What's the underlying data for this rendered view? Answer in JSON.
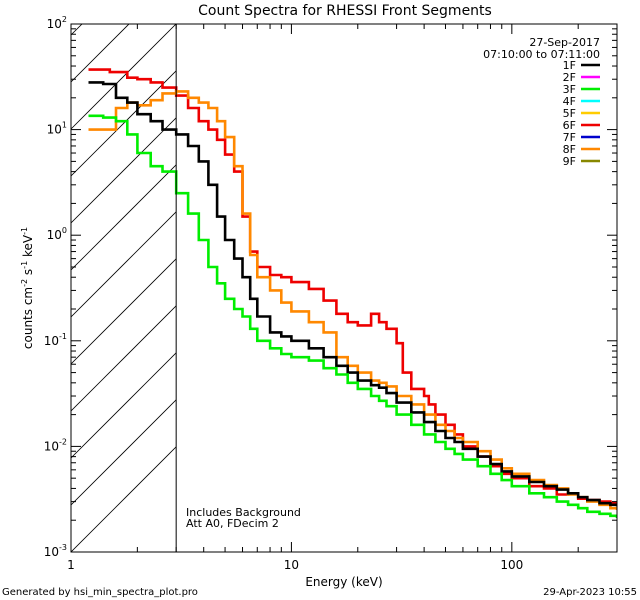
{
  "chart_data": {
    "type": "line",
    "title": "Count Spectra for RHESSI Front Segments",
    "xlabel": "Energy (keV)",
    "ylabel_parts": [
      "counts cm",
      "-2",
      " s",
      "-1",
      " keV",
      "-1"
    ],
    "xscale": "log",
    "yscale": "log",
    "xlim": [
      1,
      300
    ],
    "ylim": [
      0.001,
      100
    ],
    "x_tick_labels": [
      {
        "value": 1,
        "label": "1"
      },
      {
        "value": 10,
        "label": "10"
      },
      {
        "value": 100,
        "label": "100"
      }
    ],
    "y_tick_labels": [
      {
        "value": 0.001,
        "base": "10",
        "exp": "-3"
      },
      {
        "value": 0.01,
        "base": "10",
        "exp": "-2"
      },
      {
        "value": 0.1,
        "base": "10",
        "exp": "-1"
      },
      {
        "value": 1,
        "base": "10",
        "exp": "0"
      },
      {
        "value": 10,
        "base": "10",
        "exp": "1"
      },
      {
        "value": 100,
        "base": "10",
        "exp": "2"
      }
    ],
    "date": "27-Sep-2017",
    "time_range": "07:10:00 to 07:11:00",
    "legend": [
      {
        "name": "1F",
        "color": "#000000"
      },
      {
        "name": "2F",
        "color": "#ff00ff"
      },
      {
        "name": "3F",
        "color": "#00ee00"
      },
      {
        "name": "4F",
        "color": "#00ffff"
      },
      {
        "name": "5F",
        "color": "#ffcc00"
      },
      {
        "name": "6F",
        "color": "#ee0000"
      },
      {
        "name": "7F",
        "color": "#0000cc"
      },
      {
        "name": "8F",
        "color": "#ff8800"
      },
      {
        "name": "9F",
        "color": "#888800"
      }
    ],
    "hatched_region": {
      "from": 1,
      "to": 3
    },
    "annotations": [
      "Includes Background",
      "Att A0, FDecim 2"
    ],
    "series": [
      {
        "name": "6F",
        "color": "#ee0000",
        "x": [
          1.2,
          1.5,
          1.8,
          2.0,
          2.3,
          2.6,
          3.0,
          3.4,
          3.8,
          4.2,
          4.6,
          5.0,
          5.5,
          6.0,
          6.5,
          7.0,
          8.0,
          9.0,
          10,
          12,
          14,
          16,
          18,
          20,
          23,
          25,
          27,
          30,
          32,
          35,
          40,
          42,
          45,
          50,
          55,
          60,
          70,
          80,
          90,
          100,
          120,
          140,
          160,
          180,
          200,
          220,
          250,
          280,
          300
        ],
        "y": [
          37,
          35,
          31,
          30,
          28,
          25,
          21,
          16,
          12,
          10,
          8,
          5.8,
          4.0,
          1.5,
          0.7,
          0.5,
          0.42,
          0.4,
          0.36,
          0.31,
          0.24,
          0.18,
          0.15,
          0.14,
          0.18,
          0.15,
          0.13,
          0.095,
          0.05,
          0.035,
          0.03,
          0.025,
          0.02,
          0.016,
          0.013,
          0.01,
          0.008,
          0.0065,
          0.0055,
          0.005,
          0.0042,
          0.004,
          0.0035,
          0.0036,
          0.0032,
          0.0031,
          0.003,
          0.0029,
          0.0028
        ]
      },
      {
        "name": "8F",
        "color": "#ff8800",
        "x": [
          1.2,
          1.4,
          1.6,
          1.8,
          2.0,
          2.3,
          2.6,
          3.0,
          3.4,
          3.8,
          4.2,
          4.6,
          5.0,
          5.5,
          6.0,
          6.5,
          7.0,
          8.0,
          9.0,
          10,
          12,
          14,
          16,
          18,
          20,
          23,
          25,
          27,
          30,
          35,
          40,
          45,
          50,
          55,
          60,
          70,
          80,
          90,
          100,
          120,
          140,
          160,
          180,
          200,
          220,
          250,
          280,
          300
        ],
        "y": [
          10,
          10,
          16,
          18,
          17,
          19,
          22,
          23,
          20,
          18,
          16,
          12,
          8.5,
          4.5,
          1.6,
          0.65,
          0.4,
          0.3,
          0.23,
          0.19,
          0.15,
          0.12,
          0.07,
          0.058,
          0.05,
          0.042,
          0.04,
          0.037,
          0.03,
          0.025,
          0.02,
          0.016,
          0.014,
          0.012,
          0.011,
          0.009,
          0.0075,
          0.0062,
          0.0055,
          0.0048,
          0.0043,
          0.004,
          0.0035,
          0.0033,
          0.003,
          0.0028,
          0.0026,
          0.0025
        ]
      },
      {
        "name": "1F",
        "color": "#000000",
        "x": [
          1.2,
          1.4,
          1.6,
          1.8,
          2.0,
          2.3,
          2.6,
          3.0,
          3.4,
          3.8,
          4.2,
          4.6,
          5.0,
          5.5,
          6.0,
          6.5,
          7.0,
          8.0,
          9.0,
          10,
          12,
          14,
          16,
          18,
          20,
          23,
          25,
          27,
          30,
          35,
          40,
          45,
          50,
          55,
          60,
          70,
          80,
          90,
          100,
          120,
          140,
          160,
          180,
          200,
          220,
          250,
          280,
          300
        ],
        "y": [
          28,
          27,
          20,
          18,
          14,
          12,
          10,
          9,
          7,
          5,
          3,
          1.5,
          0.9,
          0.6,
          0.4,
          0.25,
          0.17,
          0.12,
          0.11,
          0.1,
          0.085,
          0.07,
          0.058,
          0.05,
          0.042,
          0.038,
          0.036,
          0.032,
          0.026,
          0.021,
          0.017,
          0.014,
          0.012,
          0.011,
          0.0095,
          0.008,
          0.0068,
          0.0058,
          0.0052,
          0.0046,
          0.0042,
          0.0039,
          0.0036,
          0.0033,
          0.0031,
          0.0029,
          0.0028,
          0.0027
        ]
      },
      {
        "name": "3F",
        "color": "#00ee00",
        "x": [
          1.2,
          1.4,
          1.6,
          1.8,
          2.0,
          2.3,
          2.6,
          3.0,
          3.4,
          3.8,
          4.2,
          4.6,
          5.0,
          5.5,
          6.0,
          6.5,
          7.0,
          8.0,
          9.0,
          10,
          12,
          14,
          16,
          18,
          20,
          23,
          25,
          27,
          30,
          35,
          40,
          45,
          50,
          55,
          60,
          70,
          80,
          90,
          100,
          120,
          140,
          160,
          180,
          200,
          220,
          250,
          280,
          300
        ],
        "y": [
          13.5,
          13,
          12,
          9,
          6,
          4.5,
          4,
          2.5,
          1.6,
          0.9,
          0.5,
          0.35,
          0.25,
          0.2,
          0.17,
          0.13,
          0.1,
          0.085,
          0.075,
          0.07,
          0.065,
          0.055,
          0.048,
          0.04,
          0.035,
          0.03,
          0.027,
          0.024,
          0.02,
          0.016,
          0.013,
          0.011,
          0.0095,
          0.0085,
          0.0075,
          0.0065,
          0.0055,
          0.0048,
          0.0042,
          0.0036,
          0.0033,
          0.003,
          0.0028,
          0.0026,
          0.0024,
          0.0023,
          0.0022,
          0.0021
        ]
      }
    ]
  },
  "footer": {
    "generated_by": "Generated by hsi_min_spectra_plot.pro",
    "timestamp": "29-Apr-2023 10:55"
  }
}
